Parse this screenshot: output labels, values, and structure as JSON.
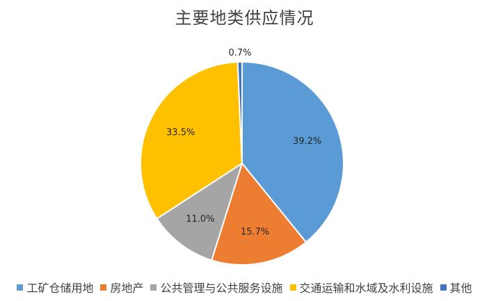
{
  "chart_data": {
    "type": "pie",
    "title": "主要地类供应情况",
    "categories": [
      "工矿仓储用地",
      "房地产",
      "公共管理与公共服务设施",
      "交通运输和水域及水利设施",
      "其他"
    ],
    "values": [
      39.2,
      15.7,
      11.0,
      33.5,
      0.7
    ],
    "value_labels": [
      "39.2%",
      "15.7%",
      "11.0%",
      "33.5%",
      "0.7%"
    ],
    "colors": [
      "#5b9bd5",
      "#ed7d31",
      "#a5a5a5",
      "#ffc000",
      "#4472c4"
    ],
    "start_angle": "12 o'clock, clockwise",
    "legend_position": "bottom"
  }
}
